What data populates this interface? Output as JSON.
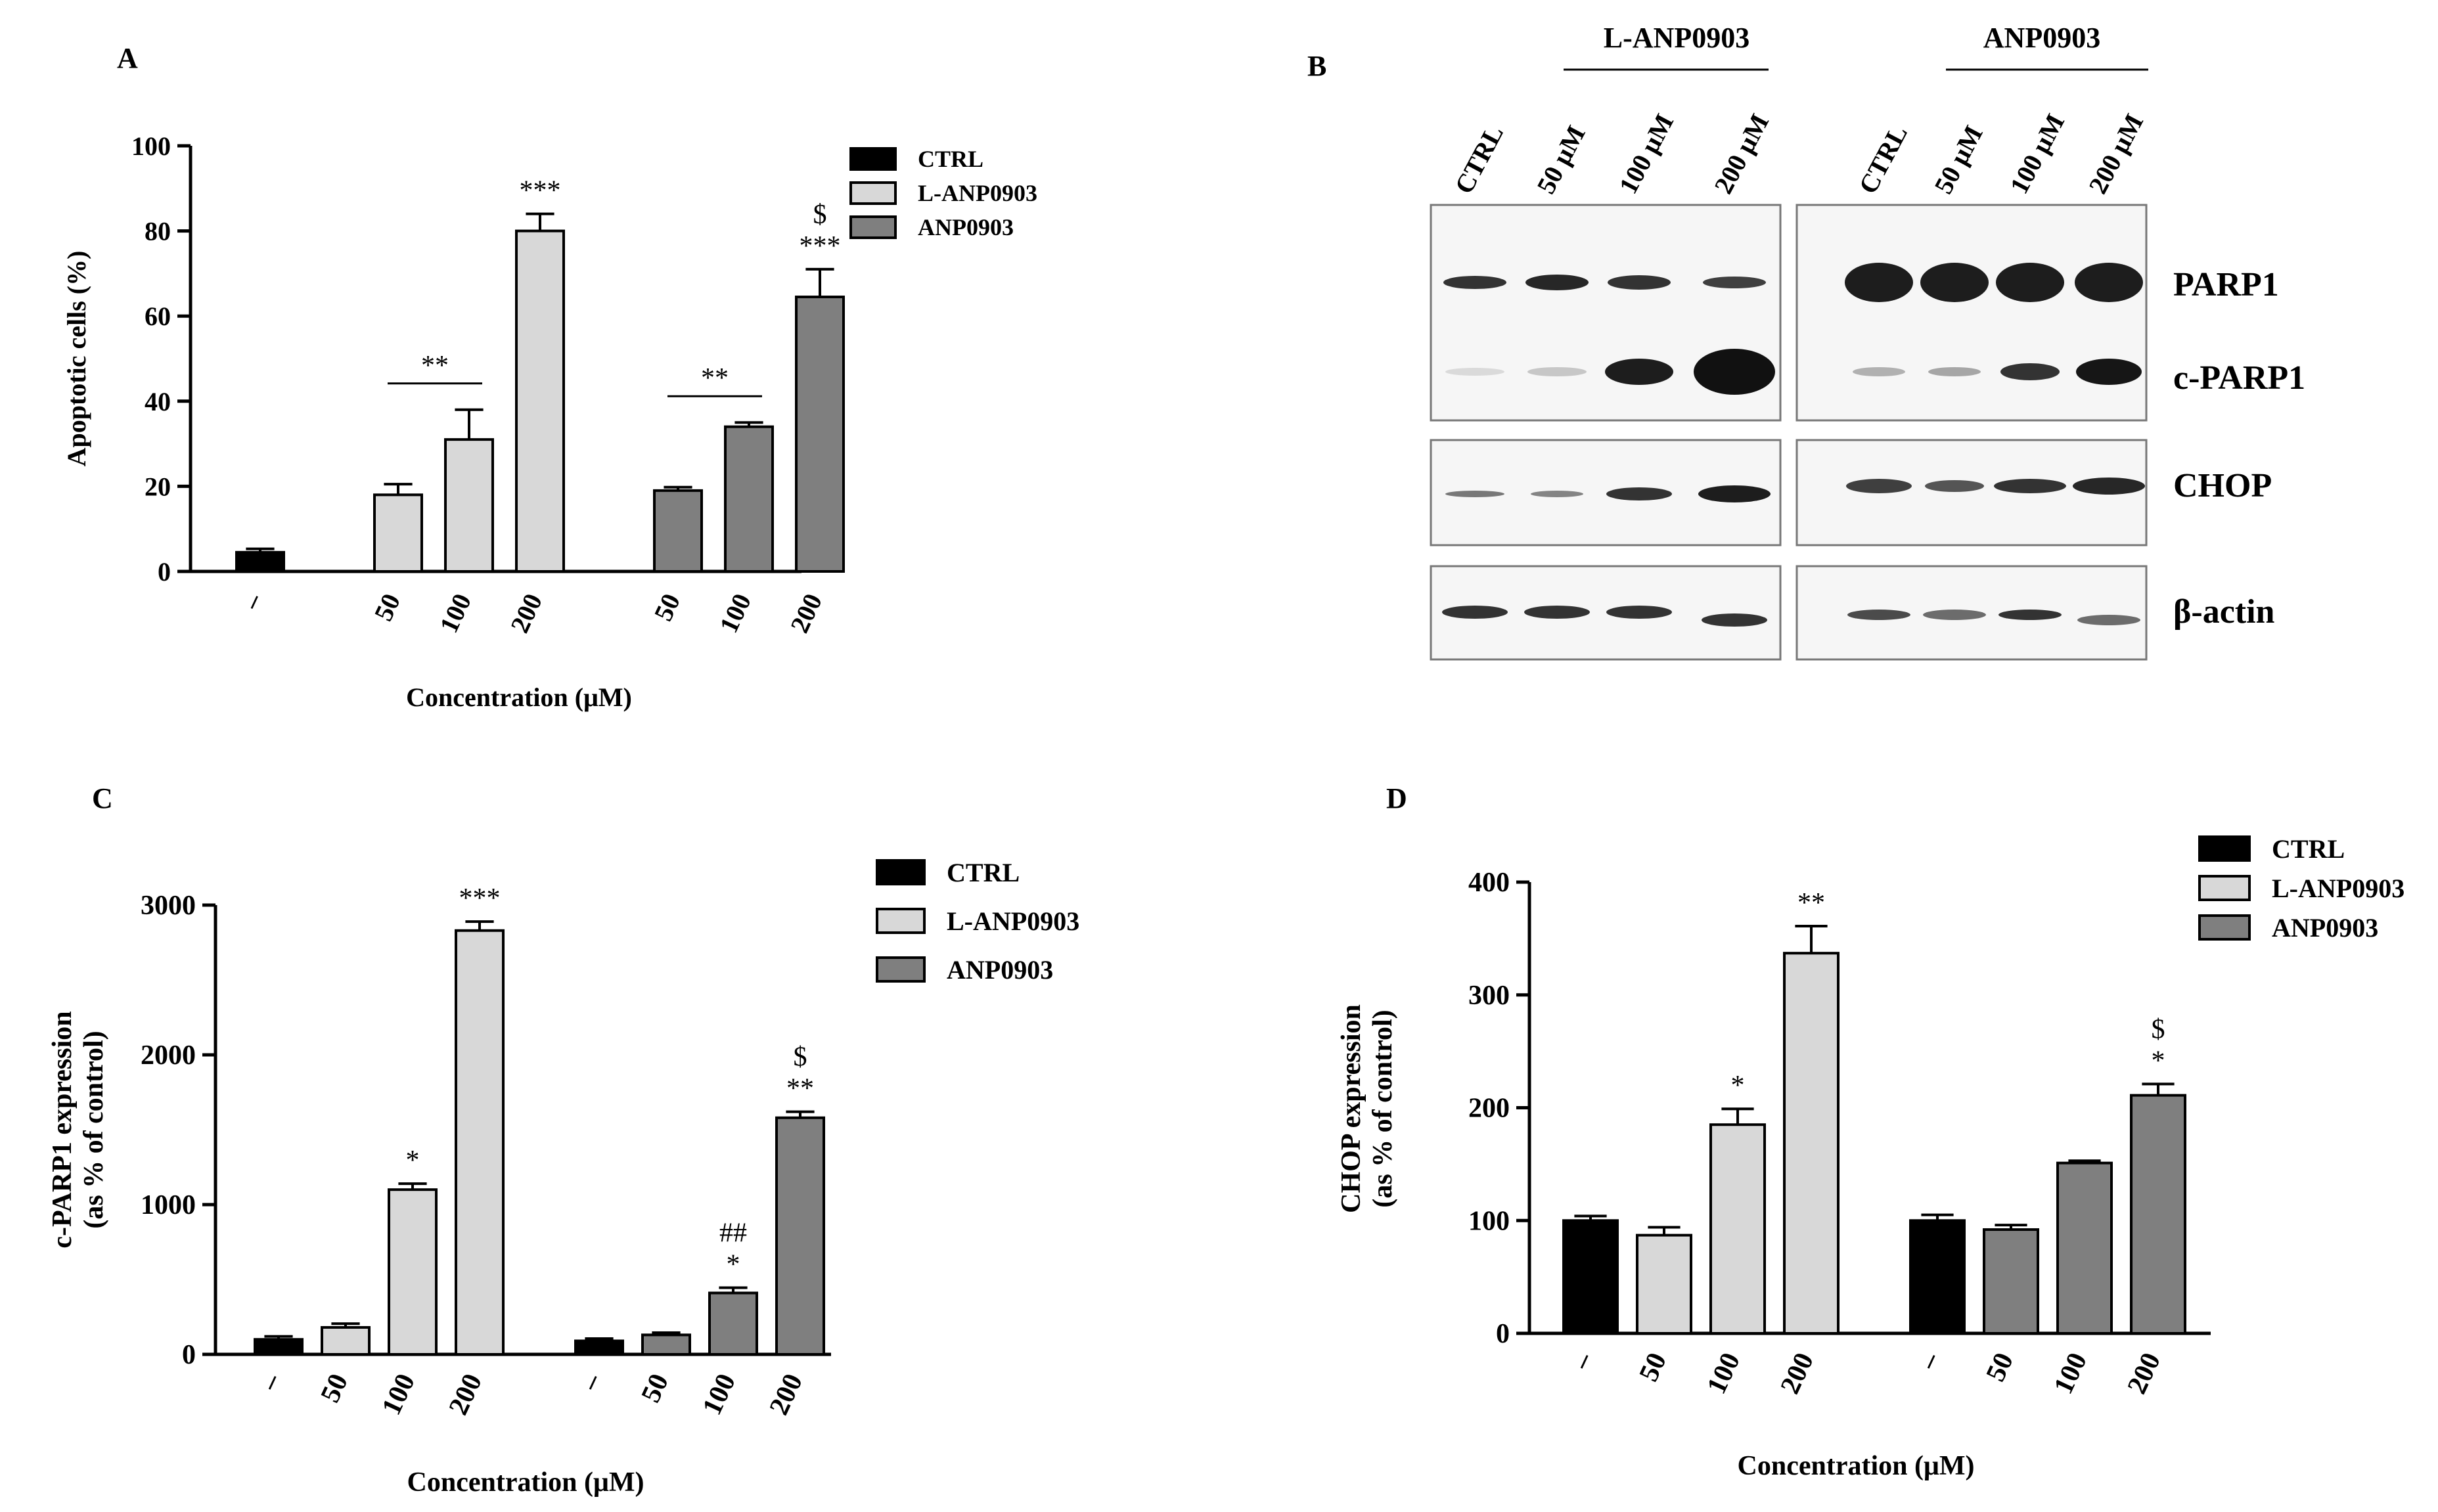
{
  "chart_data": [
    {
      "panel": "A",
      "type": "bar",
      "ylabel": "Apoptotic cells (%)",
      "xlabel": "Concentration (μM)",
      "ylim": [
        0,
        100
      ],
      "yticks": [
        "0",
        "20",
        "40",
        "60",
        "80",
        "100"
      ],
      "legend": [
        "CTRL",
        "L-ANP0903",
        "ANP0903"
      ],
      "legend_position": "right",
      "groups": [
        {
          "bars": [
            {
              "label": "–",
              "series": "CTRL",
              "value": 4.5,
              "err": 0.8,
              "sig": []
            }
          ]
        },
        {
          "bars": [
            {
              "label": "50",
              "series": "L-ANP0903",
              "value": 18,
              "err": 2.5,
              "sig": []
            },
            {
              "label": "100",
              "series": "L-ANP0903",
              "value": 31,
              "err": 7,
              "sig": []
            },
            {
              "label": "200",
              "series": "L-ANP0903",
              "value": 80,
              "err": 4,
              "sig": [
                "***"
              ]
            }
          ]
        },
        {
          "bars": [
            {
              "label": "50",
              "series": "ANP0903",
              "value": 19,
              "err": 0.8,
              "sig": []
            },
            {
              "label": "100",
              "series": "ANP0903",
              "value": 34,
              "err": 1,
              "sig": []
            },
            {
              "label": "200",
              "series": "ANP0903",
              "value": 64.5,
              "err": 6.5,
              "sig": [
                "***",
                "$"
              ]
            }
          ]
        }
      ],
      "brackets": [
        {
          "from_group": 1,
          "from_bar": 0,
          "to_group": 1,
          "to_bar": 1,
          "text": "**"
        },
        {
          "from_group": 2,
          "from_bar": 0,
          "to_group": 2,
          "to_bar": 1,
          "text": "**"
        }
      ]
    },
    {
      "panel": "C",
      "type": "bar",
      "ylabel_lines": [
        "c-PARP1 expression",
        "(as % of control)"
      ],
      "xlabel": "Concentration (μM)",
      "ylim": [
        0,
        3000
      ],
      "yticks": [
        "0",
        "1000",
        "2000",
        "3000"
      ],
      "legend": [
        "CTRL",
        "L-ANP0903",
        "ANP0903"
      ],
      "legend_position": "right",
      "groups": [
        {
          "bars": [
            {
              "label": "–",
              "series": "CTRL",
              "value": 100,
              "err": 20,
              "sig": []
            },
            {
              "label": "50",
              "series": "L-ANP0903",
              "value": 180,
              "err": 25,
              "sig": []
            },
            {
              "label": "100",
              "series": "L-ANP0903",
              "value": 1100,
              "err": 40,
              "sig": [
                "*"
              ]
            },
            {
              "label": "200",
              "series": "L-ANP0903",
              "value": 2830,
              "err": 60,
              "sig": [
                "***"
              ]
            }
          ]
        },
        {
          "bars": [
            {
              "label": "–",
              "series": "CTRL",
              "value": 90,
              "err": 15,
              "sig": []
            },
            {
              "label": "50",
              "series": "ANP0903",
              "value": 130,
              "err": 15,
              "sig": []
            },
            {
              "label": "100",
              "series": "ANP0903",
              "value": 410,
              "err": 35,
              "sig": [
                "*",
                "##"
              ]
            },
            {
              "label": "200",
              "series": "ANP0903",
              "value": 1580,
              "err": 40,
              "sig": [
                "**",
                "$"
              ]
            }
          ]
        }
      ]
    },
    {
      "panel": "D",
      "type": "bar",
      "ylabel_lines": [
        "CHOP expression",
        "(as % of control)"
      ],
      "xlabel": "Concentration (μM)",
      "ylim": [
        0,
        400
      ],
      "yticks": [
        "0",
        "100",
        "200",
        "300",
        "400"
      ],
      "legend": [
        "CTRL",
        "L-ANP0903",
        "ANP0903"
      ],
      "legend_position": "top-right",
      "groups": [
        {
          "bars": [
            {
              "label": "–",
              "series": "CTRL",
              "value": 100,
              "err": 4,
              "sig": []
            },
            {
              "label": "50",
              "series": "L-ANP0903",
              "value": 87,
              "err": 7,
              "sig": []
            },
            {
              "label": "100",
              "series": "L-ANP0903",
              "value": 185,
              "err": 14,
              "sig": [
                "*"
              ]
            },
            {
              "label": "200",
              "series": "L-ANP0903",
              "value": 337,
              "err": 24,
              "sig": [
                "**"
              ]
            }
          ]
        },
        {
          "bars": [
            {
              "label": "–",
              "series": "CTRL",
              "value": 100,
              "err": 5,
              "sig": []
            },
            {
              "label": "50",
              "series": "ANP0903",
              "value": 92,
              "err": 4,
              "sig": []
            },
            {
              "label": "100",
              "series": "ANP0903",
              "value": 151,
              "err": 2,
              "sig": []
            },
            {
              "label": "200",
              "series": "ANP0903",
              "value": 211,
              "err": 10,
              "sig": [
                "*",
                "$"
              ]
            }
          ]
        }
      ]
    }
  ],
  "blot": {
    "panel": "B",
    "group_titles": [
      "L-ANP0903",
      "ANP0903"
    ],
    "lanes_left": [
      "CTRL",
      "50 μM",
      "100 μM",
      "200 μM"
    ],
    "lanes_right": [
      "CTRL",
      "50 μM",
      "100 μM",
      "200 μM"
    ],
    "row_labels": [
      "PARP1",
      "c-PARP1",
      "CHOP",
      "β-actin"
    ]
  },
  "colors": {
    "CTRL": "#000000",
    "L-ANP0903": "#d8d8d8",
    "ANP0903": "#7f7f7f"
  }
}
